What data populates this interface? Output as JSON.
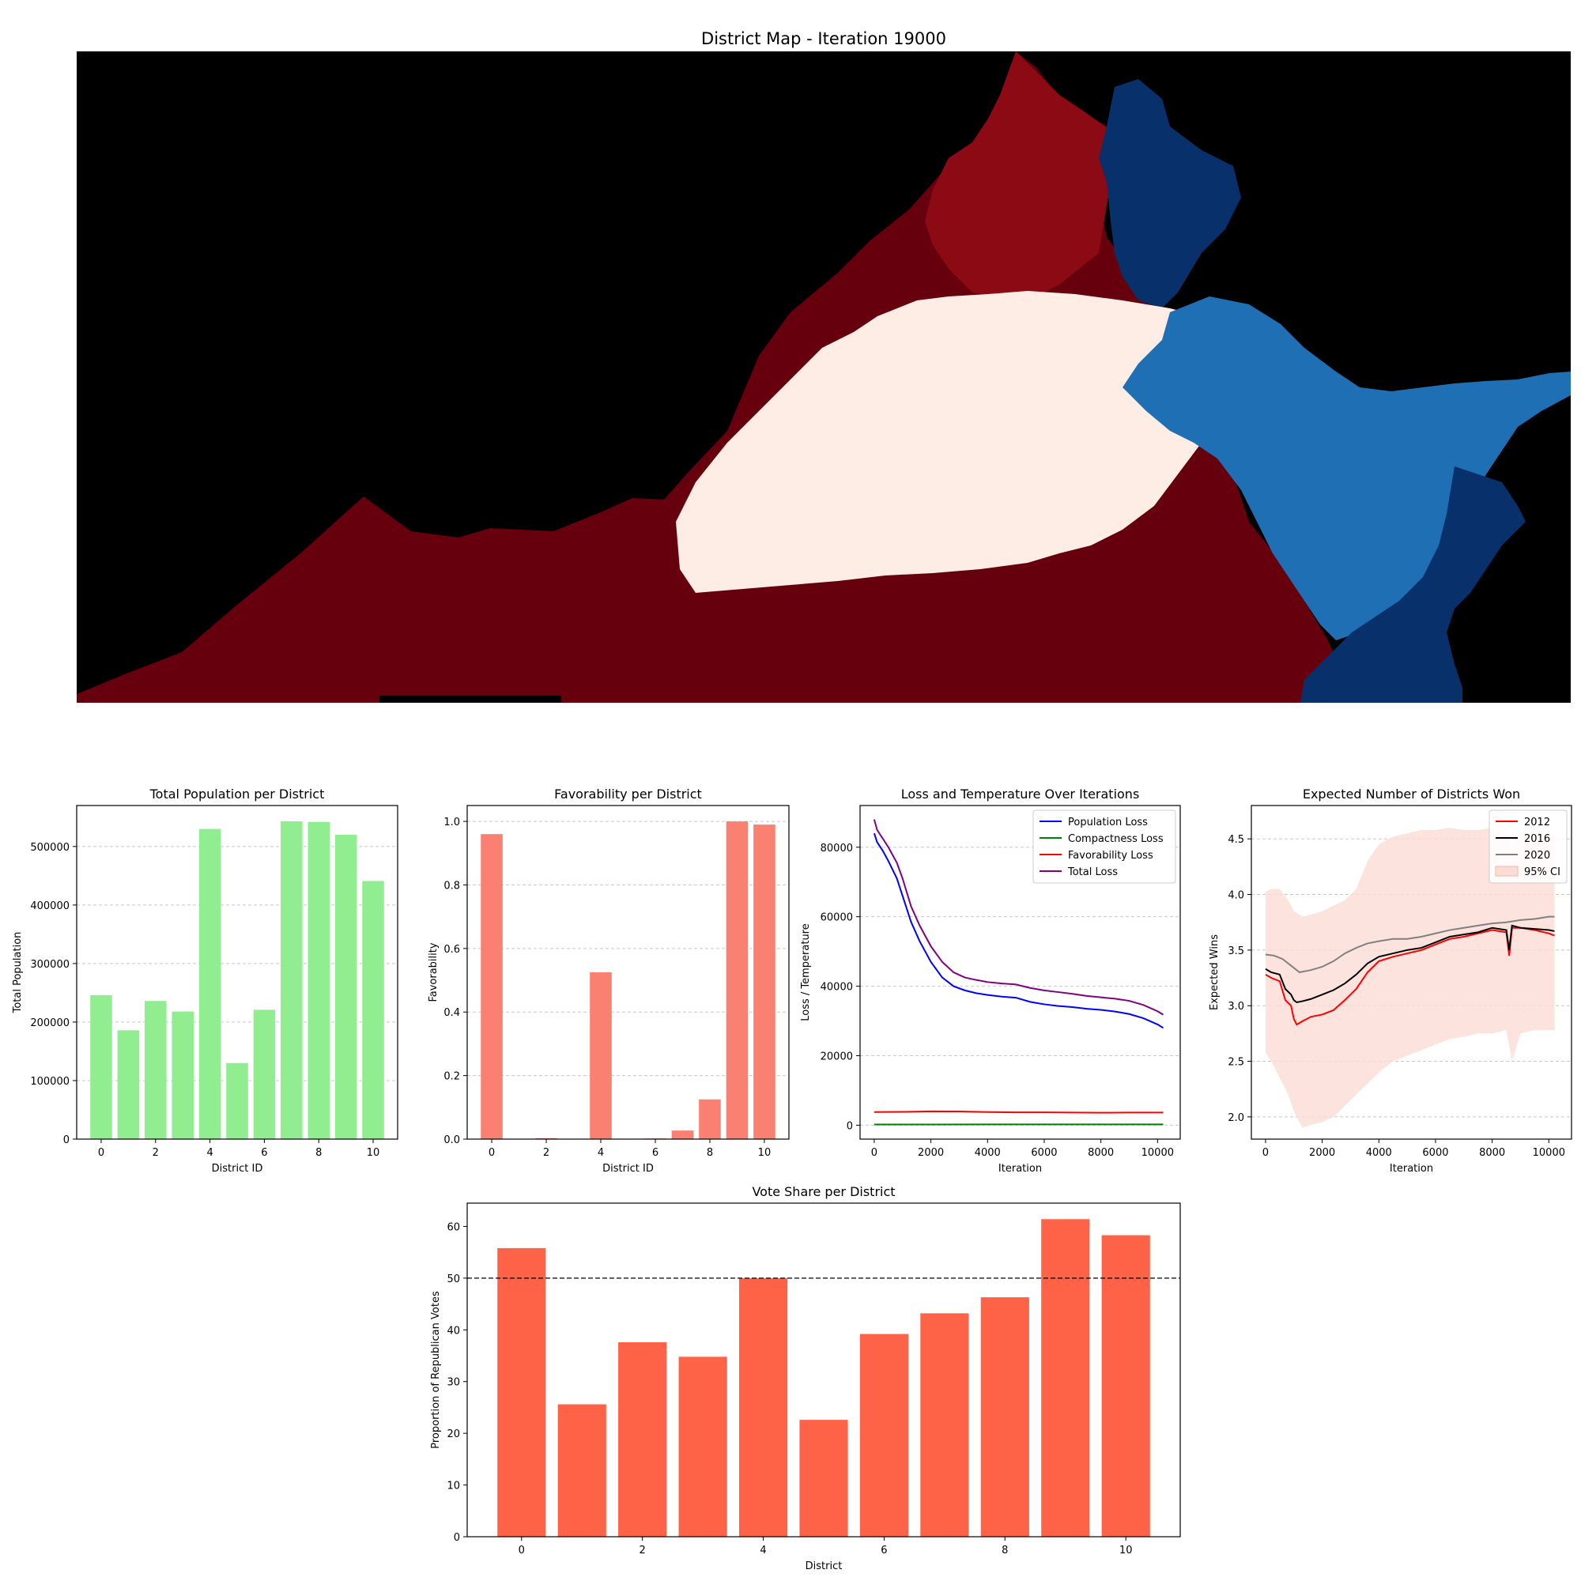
{
  "map": {
    "title": "District Map - Iteration 19000",
    "colors": {
      "background": "#000000",
      "deep_red": "#67000d",
      "red": "#8b0a13",
      "pale": "#fdede5",
      "mid_blue": "#1f6fb4",
      "navy": "#08306b"
    }
  },
  "chart_data": [
    {
      "id": "population",
      "type": "bar",
      "title": "Total Population per District",
      "xlabel": "District ID",
      "ylabel": "Total Population",
      "categories": [
        0,
        1,
        2,
        3,
        4,
        5,
        6,
        7,
        8,
        9,
        10
      ],
      "values": [
        246000,
        186000,
        236000,
        218000,
        530000,
        130000,
        221000,
        543000,
        542000,
        520000,
        441000
      ],
      "x_ticks": [
        "0",
        "2",
        "4",
        "6",
        "8",
        "10"
      ],
      "y_ticks": [
        "0",
        "100000",
        "200000",
        "300000",
        "400000",
        "500000"
      ],
      "ylim": [
        0,
        570000
      ],
      "grid": "y dashed",
      "color": "#90ee90"
    },
    {
      "id": "favorability",
      "type": "bar",
      "title": "Favorability per District",
      "xlabel": "District ID",
      "ylabel": "Favorability",
      "categories": [
        0,
        1,
        2,
        3,
        4,
        5,
        6,
        7,
        8,
        9,
        10
      ],
      "values": [
        0.96,
        0.0,
        0.003,
        0.0,
        0.525,
        0.0,
        0.002,
        0.027,
        0.125,
        1.0,
        0.99
      ],
      "x_ticks": [
        "0",
        "2",
        "4",
        "6",
        "8",
        "10"
      ],
      "y_ticks": [
        "0.0",
        "0.2",
        "0.4",
        "0.6",
        "0.8",
        "1.0"
      ],
      "ylim": [
        0,
        1.05
      ],
      "grid": "y dashed",
      "color": "#fa8072"
    },
    {
      "id": "loss",
      "type": "line",
      "title": "Loss and Temperature Over Iterations",
      "xlabel": "Iteration",
      "ylabel": "Loss / Temperature",
      "xlim": [
        -500,
        10800
      ],
      "ylim": [
        -4000,
        92000
      ],
      "x_ticks": [
        "0",
        "2000",
        "4000",
        "6000",
        "8000",
        "10000"
      ],
      "y_ticks": [
        "0",
        "20000",
        "40000",
        "60000",
        "80000"
      ],
      "grid": "y dashed",
      "legend": "top-right",
      "series": [
        {
          "name": "Population Loss",
          "color": "#0000ff",
          "x": [
            0,
            100,
            300,
            500,
            800,
            1000,
            1300,
            1600,
            2000,
            2400,
            2800,
            3200,
            3600,
            4000,
            4500,
            5000,
            5500,
            6000,
            6500,
            7000,
            7500,
            8000,
            8500,
            9000,
            9500,
            10000,
            10200
          ],
          "y": [
            84000,
            81500,
            79000,
            76000,
            71000,
            66000,
            58500,
            53000,
            47000,
            42500,
            40000,
            38800,
            38000,
            37500,
            37000,
            36700,
            35500,
            34800,
            34300,
            34000,
            33500,
            33200,
            32700,
            32000,
            30800,
            29000,
            28000
          ]
        },
        {
          "name": "Compactness Loss",
          "color": "#008000",
          "x": [
            0,
            2000,
            4000,
            6000,
            8000,
            10200
          ],
          "y": [
            200,
            220,
            230,
            240,
            245,
            250
          ]
        },
        {
          "name": "Favorability Loss",
          "color": "#ff0000",
          "x": [
            0,
            1000,
            2000,
            3000,
            4000,
            5000,
            6000,
            7000,
            8000,
            9000,
            10200
          ],
          "y": [
            3800,
            3850,
            4000,
            3950,
            3800,
            3700,
            3700,
            3650,
            3600,
            3650,
            3650
          ]
        },
        {
          "name": "Total Loss",
          "color": "#800080",
          "x": [
            0,
            100,
            300,
            500,
            800,
            1000,
            1300,
            1600,
            2000,
            2400,
            2800,
            3200,
            3600,
            4000,
            4500,
            5000,
            5500,
            6000,
            6500,
            7000,
            7500,
            8000,
            8500,
            9000,
            9500,
            10000,
            10200
          ],
          "y": [
            88000,
            85000,
            82500,
            80000,
            75500,
            71000,
            63000,
            57500,
            51500,
            47000,
            44000,
            42500,
            41800,
            41200,
            40800,
            40500,
            39500,
            38800,
            38300,
            37800,
            37200,
            36800,
            36400,
            35800,
            34600,
            32800,
            31800
          ]
        }
      ]
    },
    {
      "id": "expected_wins",
      "type": "line",
      "title": "Expected Number of Districts Won",
      "xlabel": "Iteration",
      "ylabel": "Expected Wins",
      "xlim": [
        -500,
        10800
      ],
      "ylim": [
        1.8,
        4.8
      ],
      "x_ticks": [
        "0",
        "2000",
        "4000",
        "6000",
        "8000",
        "10000"
      ],
      "y_ticks": [
        "2.0",
        "2.5",
        "3.0",
        "3.5",
        "4.0",
        "4.5"
      ],
      "grid": "y dashed",
      "legend": "top-right",
      "band": {
        "name": "95% CI",
        "color": "#fddcd6",
        "x": [
          0,
          200,
          500,
          800,
          1000,
          1300,
          1600,
          2000,
          2400,
          2800,
          3200,
          3600,
          4000,
          4500,
          5000,
          5500,
          6000,
          6500,
          7000,
          7500,
          8000,
          8500,
          8700,
          9000,
          9500,
          10000,
          10200
        ],
        "upper": [
          4.02,
          4.05,
          4.05,
          3.95,
          3.85,
          3.8,
          3.82,
          3.85,
          3.9,
          3.95,
          4.05,
          4.3,
          4.45,
          4.52,
          4.55,
          4.58,
          4.58,
          4.6,
          4.58,
          4.58,
          4.6,
          4.55,
          4.4,
          4.55,
          4.56,
          4.52,
          4.52
        ],
        "lower": [
          2.58,
          2.5,
          2.35,
          2.2,
          2.05,
          1.9,
          1.93,
          1.95,
          2.0,
          2.1,
          2.2,
          2.3,
          2.4,
          2.5,
          2.55,
          2.6,
          2.65,
          2.7,
          2.72,
          2.75,
          2.75,
          2.78,
          2.5,
          2.75,
          2.78,
          2.78,
          2.78
        ]
      },
      "series": [
        {
          "name": "2012",
          "color": "#ff0000",
          "x": [
            0,
            200,
            500,
            700,
            900,
            1000,
            1100,
            1300,
            1600,
            2000,
            2400,
            2800,
            3200,
            3600,
            4000,
            4500,
            5000,
            5500,
            6000,
            6500,
            7000,
            7500,
            8000,
            8500,
            8600,
            8700,
            9000,
            9500,
            10000,
            10200
          ],
          "y": [
            3.28,
            3.25,
            3.22,
            3.05,
            3.0,
            2.88,
            2.83,
            2.86,
            2.9,
            2.92,
            2.96,
            3.05,
            3.15,
            3.3,
            3.4,
            3.44,
            3.47,
            3.5,
            3.55,
            3.6,
            3.62,
            3.65,
            3.68,
            3.66,
            3.45,
            3.7,
            3.7,
            3.68,
            3.65,
            3.63
          ]
        },
        {
          "name": "2016",
          "color": "#000000",
          "x": [
            0,
            200,
            500,
            700,
            900,
            1000,
            1100,
            1300,
            1600,
            2000,
            2400,
            2800,
            3200,
            3600,
            4000,
            4500,
            5000,
            5500,
            6000,
            6500,
            7000,
            7500,
            8000,
            8500,
            8600,
            8700,
            9000,
            9500,
            10000,
            10200
          ],
          "y": [
            3.33,
            3.3,
            3.28,
            3.15,
            3.1,
            3.05,
            3.03,
            3.04,
            3.06,
            3.1,
            3.14,
            3.2,
            3.28,
            3.38,
            3.44,
            3.47,
            3.5,
            3.52,
            3.57,
            3.62,
            3.64,
            3.66,
            3.7,
            3.68,
            3.5,
            3.72,
            3.7,
            3.69,
            3.68,
            3.67
          ]
        },
        {
          "name": "2020",
          "color": "#808080",
          "x": [
            0,
            300,
            600,
            900,
            1200,
            1600,
            2000,
            2400,
            2800,
            3200,
            3600,
            4000,
            4500,
            5000,
            5500,
            6000,
            6500,
            7000,
            7500,
            8000,
            8500,
            9000,
            9500,
            10000,
            10200
          ],
          "y": [
            3.46,
            3.45,
            3.42,
            3.36,
            3.3,
            3.32,
            3.35,
            3.4,
            3.47,
            3.52,
            3.56,
            3.58,
            3.6,
            3.6,
            3.62,
            3.65,
            3.68,
            3.7,
            3.72,
            3.74,
            3.75,
            3.77,
            3.78,
            3.8,
            3.8
          ]
        }
      ]
    },
    {
      "id": "vote_share",
      "type": "bar",
      "title": "Vote Share per District",
      "xlabel": "District",
      "ylabel": "Proportion of Republican Votes",
      "categories": [
        0,
        1,
        2,
        3,
        4,
        5,
        6,
        7,
        8,
        9,
        10
      ],
      "values": [
        55.8,
        25.6,
        37.6,
        34.8,
        50.0,
        22.6,
        39.2,
        43.2,
        46.3,
        61.4,
        58.3
      ],
      "x_ticks": [
        "0",
        "2",
        "4",
        "6",
        "8",
        "10"
      ],
      "y_ticks": [
        "0",
        "10",
        "20",
        "30",
        "40",
        "50",
        "60"
      ],
      "ylim": [
        0,
        64.5
      ],
      "reference_line": 50,
      "color": "#ff6347"
    }
  ]
}
